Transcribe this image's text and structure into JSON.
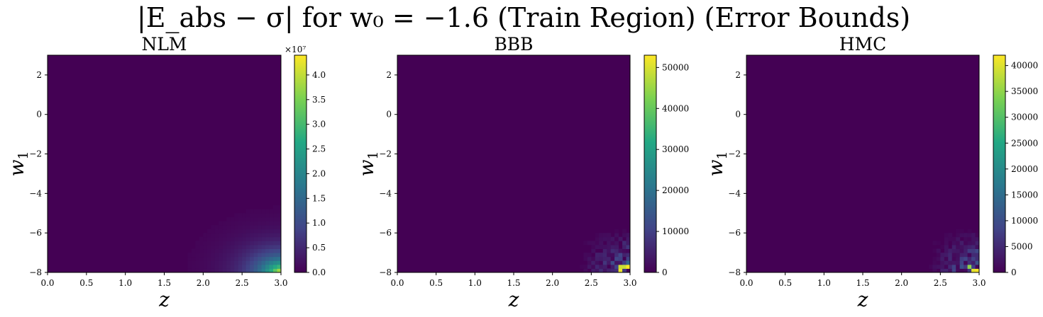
{
  "figure": {
    "title": "|E_abs − σ| for w₀ = −1.6 (Train Region) (Error Bounds)"
  },
  "colormap": {
    "name": "viridis",
    "stops": [
      "#440154",
      "#414487",
      "#2a788e",
      "#22a884",
      "#7ad151",
      "#fde725"
    ]
  },
  "chart_data": [
    {
      "type": "heatmap",
      "title": "NLM",
      "xlabel": "z",
      "ylabel": "w_1",
      "xlim": [
        0.0,
        3.0
      ],
      "ylim": [
        -8,
        3
      ],
      "xticks": [
        "0.0",
        "0.5",
        "1.0",
        "1.5",
        "2.0",
        "2.5",
        "3.0"
      ],
      "yticks": [
        "2",
        "0",
        "−2",
        "−4",
        "−6",
        "−8"
      ],
      "colorbar": {
        "min": 0,
        "max": 44000000,
        "ticks": [
          "0.0",
          "0.5",
          "1.0",
          "1.5",
          "2.0",
          "2.5",
          "3.0",
          "3.5",
          "4.0"
        ],
        "multiplier": "×10⁷"
      },
      "pattern": "smooth corner growth toward z=3.0, w1=−8 (peak ≈ 4.4e7)"
    },
    {
      "type": "heatmap",
      "title": "BBB",
      "xlabel": "z",
      "ylabel": "w_1",
      "xlim": [
        0.0,
        3.0
      ],
      "ylim": [
        -8,
        3
      ],
      "xticks": [
        "0.0",
        "0.5",
        "1.0",
        "1.5",
        "2.0",
        "2.5",
        "3.0"
      ],
      "yticks": [
        "2",
        "0",
        "−2",
        "−4",
        "−6",
        "−8"
      ],
      "colorbar": {
        "min": 0,
        "max": 53000,
        "ticks": [
          "0",
          "10000",
          "20000",
          "30000",
          "40000",
          "50000"
        ]
      },
      "pattern": "speckled noise near z≈2.5–3.0, w1≈−8 to −6 (peak ≈ 5.3e4)"
    },
    {
      "type": "heatmap",
      "title": "HMC",
      "xlabel": "z",
      "ylabel": "w_1",
      "xlim": [
        0.0,
        3.0
      ],
      "ylim": [
        -8,
        3
      ],
      "xticks": [
        "0.0",
        "0.5",
        "1.0",
        "1.5",
        "2.0",
        "2.5",
        "3.0"
      ],
      "yticks": [
        "2",
        "0",
        "−2",
        "−4",
        "−6",
        "−8"
      ],
      "colorbar": {
        "min": 0,
        "max": 42000,
        "ticks": [
          "0",
          "5000",
          "10000",
          "15000",
          "20000",
          "25000",
          "30000",
          "35000",
          "40000"
        ]
      },
      "pattern": "speckled noise near z≈2.5–3.0, w1≈−8 to −6 (peak ≈ 4.2e4)"
    }
  ]
}
